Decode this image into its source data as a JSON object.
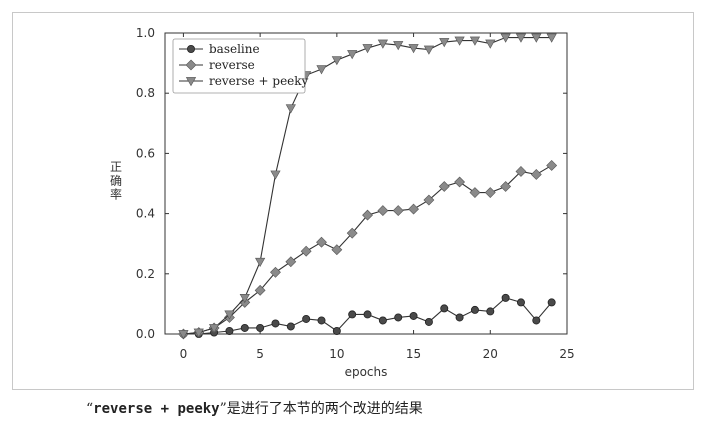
{
  "chart_data": {
    "type": "line",
    "xlabel": "epochs",
    "ylabel": "正确率",
    "xlim": [
      -1.2,
      25
    ],
    "ylim": [
      0,
      1.0
    ],
    "xticks": [
      0,
      5,
      10,
      15,
      20,
      25
    ],
    "yticks": [
      0.0,
      0.2,
      0.4,
      0.6,
      0.8,
      1.0
    ],
    "ytick_labels": [
      "0.0",
      "0.2",
      "0.4",
      "0.6",
      "0.8",
      "1.0"
    ],
    "grid": false,
    "legend_position": "top-left",
    "x": [
      0,
      1,
      2,
      3,
      4,
      5,
      6,
      7,
      8,
      9,
      10,
      11,
      12,
      13,
      14,
      15,
      16,
      17,
      18,
      19,
      20,
      21,
      22,
      23,
      24
    ],
    "series": [
      {
        "name": "baseline",
        "marker": "circle",
        "color": "#4a4a4a",
        "values": [
          0.0,
          0.0,
          0.005,
          0.01,
          0.02,
          0.02,
          0.035,
          0.025,
          0.05,
          0.045,
          0.01,
          0.065,
          0.065,
          0.045,
          0.055,
          0.06,
          0.04,
          0.085,
          0.055,
          0.08,
          0.075,
          0.12,
          0.105,
          0.045,
          0.105
        ]
      },
      {
        "name": "reverse",
        "marker": "diamond",
        "color": "#8a8a8a",
        "values": [
          0.0,
          0.005,
          0.02,
          0.055,
          0.105,
          0.145,
          0.205,
          0.24,
          0.275,
          0.305,
          0.28,
          0.335,
          0.395,
          0.41,
          0.41,
          0.415,
          0.445,
          0.49,
          0.505,
          0.47,
          0.47,
          0.49,
          0.54,
          0.53,
          0.56
        ]
      },
      {
        "name": "reverse + peeky",
        "marker": "triangle-down",
        "color": "#8a8a8a",
        "values": [
          0.0,
          0.005,
          0.02,
          0.065,
          0.12,
          0.24,
          0.53,
          0.75,
          0.86,
          0.88,
          0.91,
          0.93,
          0.95,
          0.965,
          0.96,
          0.95,
          0.945,
          0.97,
          0.975,
          0.975,
          0.965,
          0.985,
          0.985,
          0.985,
          0.985
        ]
      }
    ]
  },
  "caption": {
    "open_quote": "“",
    "code": "reverse + peeky",
    "close_quote": "”",
    "text": "是进行了本节的两个改进的结果"
  }
}
